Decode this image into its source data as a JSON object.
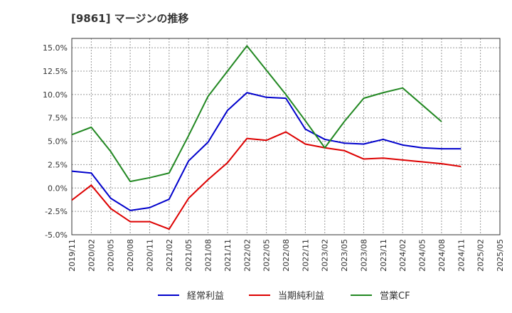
{
  "chart_data": {
    "type": "line",
    "title": "[9861]  マージンの推移",
    "xlabel": "",
    "ylabel": "",
    "ylim": [
      -5.0,
      16.0
    ],
    "yticks": [
      -5.0,
      -2.5,
      0.0,
      2.5,
      5.0,
      7.5,
      10.0,
      12.5,
      15.0
    ],
    "ytick_labels": [
      "-5.0%",
      "-2.5%",
      "0.0%",
      "2.5%",
      "5.0%",
      "7.5%",
      "10.0%",
      "12.5%",
      "15.0%"
    ],
    "grid": true,
    "legend_position": "bottom",
    "categories": [
      "2019/11",
      "2020/02",
      "2020/05",
      "2020/08",
      "2020/11",
      "2021/02",
      "2021/05",
      "2021/08",
      "2021/11",
      "2022/02",
      "2022/05",
      "2022/08",
      "2022/11",
      "2023/02",
      "2023/05",
      "2023/08",
      "2023/11",
      "2024/02",
      "2024/05",
      "2024/08",
      "2024/11",
      "2025/02",
      "2025/05"
    ],
    "series": [
      {
        "name": "経常利益",
        "color": "#0000cc",
        "values": [
          1.8,
          1.6,
          -1.1,
          -2.4,
          -2.1,
          -1.2,
          2.9,
          4.9,
          8.3,
          10.2,
          9.7,
          9.6,
          6.3,
          5.2,
          4.8,
          4.7,
          5.2,
          4.6,
          4.3,
          4.2,
          4.2,
          null,
          null
        ]
      },
      {
        "name": "当期純利益",
        "color": "#dd0000",
        "values": [
          -1.3,
          0.3,
          -2.2,
          -3.6,
          -3.6,
          -4.4,
          -1.1,
          0.9,
          2.7,
          5.3,
          5.1,
          6.0,
          4.7,
          4.3,
          4.0,
          3.1,
          3.2,
          3.0,
          2.8,
          2.6,
          2.3,
          null,
          null
        ]
      },
      {
        "name": "営業CF",
        "color": "#228822",
        "values": [
          5.7,
          6.5,
          3.9,
          0.7,
          1.1,
          1.6,
          5.6,
          9.8,
          12.5,
          15.2,
          12.6,
          10.0,
          7.2,
          4.3,
          7.1,
          9.6,
          10.2,
          10.7,
          8.9,
          7.1,
          null,
          null,
          null
        ]
      }
    ]
  }
}
